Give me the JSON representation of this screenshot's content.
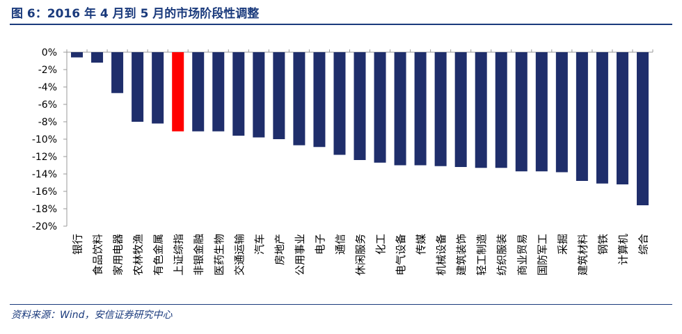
{
  "header": {
    "title": "图 6：2016 年 4 月到 5 月的市场阶段性调整"
  },
  "footer": {
    "source": "资料来源：Wind，安信证券研究中心"
  },
  "colors": {
    "bar": "#1f2e6b",
    "highlight": "#ff0000",
    "title": "#1a3a7c",
    "axis": "#999999"
  },
  "chart_data": {
    "type": "bar",
    "title": "",
    "xlabel": "",
    "ylabel": "",
    "ylim": [
      -20,
      0
    ],
    "yticks": [
      0,
      -2,
      -4,
      -6,
      -8,
      -10,
      -12,
      -14,
      -16,
      -18,
      -20
    ],
    "ytick_labels": [
      "0%",
      "-2%",
      "-4%",
      "-6%",
      "-8%",
      "-10%",
      "-12%",
      "-14%",
      "-16%",
      "-18%",
      "-20%"
    ],
    "grid": false,
    "legend": "none",
    "highlight_category": "上证综指",
    "categories": [
      "银行",
      "食品饮料",
      "家用电器",
      "农林牧渔",
      "有色金属",
      "上证综指",
      "非银金融",
      "医药生物",
      "交通运输",
      "汽车",
      "房地产",
      "公用事业",
      "电子",
      "通信",
      "休闲服务",
      "化工",
      "电气设备",
      "传媒",
      "机械设备",
      "建筑装饰",
      "轻工制造",
      "纺织服装",
      "商业贸易",
      "国防军工",
      "采掘",
      "建筑材料",
      "钢铁",
      "计算机",
      "综合"
    ],
    "values": [
      -0.6,
      -1.2,
      -4.7,
      -8.0,
      -8.2,
      -9.1,
      -9.1,
      -9.1,
      -9.6,
      -9.8,
      -10.0,
      -10.7,
      -10.9,
      -11.8,
      -12.4,
      -12.7,
      -13.0,
      -13.0,
      -13.1,
      -13.2,
      -13.3,
      -13.3,
      -13.7,
      -13.7,
      -13.8,
      -14.8,
      -15.1,
      -15.2,
      -17.6
    ]
  }
}
